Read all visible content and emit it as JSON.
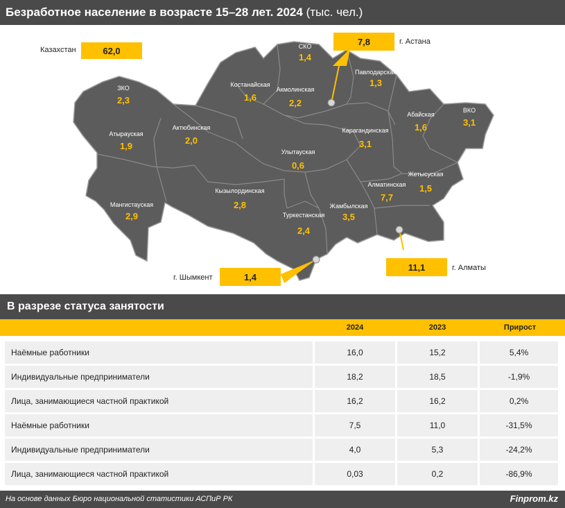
{
  "header": {
    "title": "Безработное население в возрасте 15–28 лет. 2024",
    "unit": "(тыс. чел.)"
  },
  "map": {
    "kazakhstan": {
      "label": "Казахстан",
      "value": "62,0"
    },
    "cities": [
      {
        "name": "г. Астана",
        "value": "7,8"
      },
      {
        "name": "г. Алматы",
        "value": "11,1"
      },
      {
        "name": "г. Шымкент",
        "value": "1,4"
      }
    ],
    "regions": [
      {
        "name": "ЗКО",
        "value": "2,3"
      },
      {
        "name": "Атырауская",
        "value": "1,9"
      },
      {
        "name": "Актюбинская",
        "value": "2,0"
      },
      {
        "name": "Мангистауская",
        "value": "2,9"
      },
      {
        "name": "Костанайская",
        "value": "1,6"
      },
      {
        "name": "СКО",
        "value": "1,4"
      },
      {
        "name": "Акмолинская",
        "value": "2,2"
      },
      {
        "name": "Павлодарская",
        "value": "1,3"
      },
      {
        "name": "ВКО",
        "value": "3,1"
      },
      {
        "name": "Абайская",
        "value": "1,6"
      },
      {
        "name": "Карагандинская",
        "value": "3,1"
      },
      {
        "name": "Улытауская",
        "value": "0,6"
      },
      {
        "name": "Кызылординская",
        "value": "2,8"
      },
      {
        "name": "Туркестанская",
        "value": "2,4"
      },
      {
        "name": "Жамбылская",
        "value": "3,5"
      },
      {
        "name": "Алматинская",
        "value": "7,7"
      },
      {
        "name": "Жетысуская",
        "value": "1,5"
      }
    ],
    "colors": {
      "land": "#5c5c5c",
      "border": "#8a8a8a",
      "accent": "#ffc000"
    }
  },
  "section": {
    "title": "В разрезе статуса занятости"
  },
  "table": {
    "columns": [
      "2024",
      "2023",
      "Прирост"
    ],
    "rows": [
      {
        "label": "Наёмные работники",
        "v2024": "16,0",
        "v2023": "15,2",
        "growth": "5,4%"
      },
      {
        "label": "Индивидуальные предприниматели",
        "v2024": "18,2",
        "v2023": "18,5",
        "growth": "-1,9%"
      },
      {
        "label": "Лица, занимающиеся частной практикой",
        "v2024": "16,2",
        "v2023": "16,2",
        "growth": "0,2%"
      },
      {
        "label": "Наёмные работники",
        "v2024": "7,5",
        "v2023": "11,0",
        "growth": "-31,5%"
      },
      {
        "label": "Индивидуальные предприниматели",
        "v2024": "4,0",
        "v2023": "5,3",
        "growth": "-24,2%"
      },
      {
        "label": "Лица, занимающиеся частной практикой",
        "v2024": "0,03",
        "v2023": "0,2",
        "growth": "-86,9%"
      }
    ]
  },
  "footer": {
    "source": "На основе данных Бюро национальной статистики АСПиР РК",
    "brand": "Finprom.kz"
  }
}
